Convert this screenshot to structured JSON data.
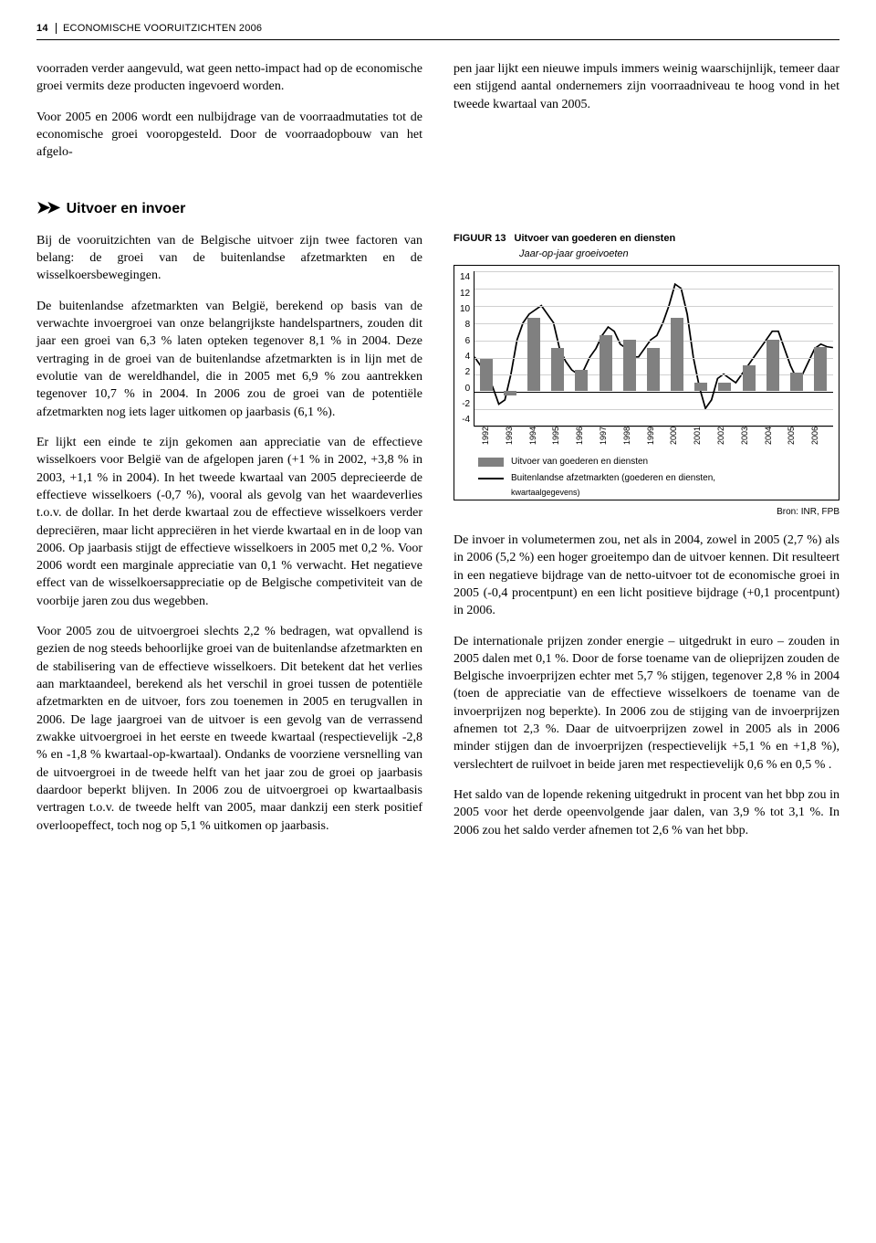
{
  "header": {
    "page_num": "14",
    "title": "ECONOMISCHE VOORUITZICHTEN 2006"
  },
  "intro": {
    "p1": "voorraden verder aangevuld, wat geen netto-impact had op de economische groei vermits deze producten ingevoerd worden.",
    "p2": "Voor 2005 en 2006 wordt een nulbĳdrage van de voorraadmutaties tot de economische groei vooropgesteld. Door de voorraadopbouw van het afgelopen jaar lĳkt een nieuwe impuls immers weinig waarschĳnlĳk, temeer daar een stĳgend aantal ondernemers zĳn voorraadniveau te hoog vond in het tweede kwartaal van 2005."
  },
  "section": {
    "title": "Uitvoer en invoer"
  },
  "left": {
    "p1": "Bĳ de vooruitzichten van de Belgische uitvoer zĳn twee factoren van belang: de groei van de buitenlandse afzetmarkten en de wisselkoersbewegingen.",
    "p2": "De buitenlandse afzetmarkten van België, berekend op basis van de verwachte invoergroei van onze belangrĳkste handelspartners, zouden dit jaar een groei van 6,3 % laten opteken tegenover 8,1 % in 2004. Deze vertraging in de groei van de buitenlandse afzetmarkten is in lĳn met de evolutie van de wereldhandel, die in 2005 met 6,9 % zou aantrekken tegenover 10,7 % in 2004. In 2006 zou de groei van de potentiële afzetmarkten nog iets lager uitkomen op jaarbasis (6,1 %).",
    "p3": "Er lĳkt een einde te zĳn gekomen aan appreciatie van de effectieve wisselkoers voor België van de afgelopen jaren (+1 % in 2002, +3,8 % in 2003, +1,1 % in 2004). In het tweede kwartaal van 2005 deprecieerde de effectieve wisselkoers (-0,7 %), vooral als gevolg van het waardeverlies t.o.v. de dollar. In het derde kwartaal zou de effectieve wisselkoers verder depreciëren, maar licht appreciëren in het vierde kwartaal en in de loop van 2006. Op jaarbasis stĳgt de effectieve wisselkoers in 2005 met 0,2 %. Voor 2006 wordt een marginale appreciatie van 0,1 % verwacht. Het negatieve effect van de wisselkoersappreciatie op de Belgische competiviteit van de voorbĳe jaren zou dus wegebben.",
    "p4": "Voor 2005 zou de uitvoergroei slechts 2,2 % bedragen, wat opvallend is gezien de nog steeds behoorlĳke groei van de buitenlandse afzetmarkten en de stabilisering van de effectieve wisselkoers. Dit betekent dat het verlies aan marktaandeel, berekend als het verschil in groei tussen de potentiële afzetmarkten en de uitvoer, fors zou toenemen in 2005 en terugvallen in 2006. De lage jaargroei van de uitvoer is een gevolg van de verrassend zwakke uitvoergroei in het eerste en tweede kwartaal (respectievelĳk -2,8 % en -1,8 % kwartaal-op-kwartaal). Ondanks de voorziene versnelling van de uitvoergroei in de tweede helft van het jaar zou de groei op jaarbasis daardoor beperkt blĳven. In 2006 zou de uitvoergroei op kwartaalbasis vertragen t.o.v. de tweede helft van 2005, maar dankzĳ een sterk positief overloopeffect, toch nog op 5,1 % uitkomen op jaarbasis."
  },
  "right": {
    "p1": "De invoer in volumetermen zou, net als in 2004, zowel in 2005 (2,7 %) als in 2006 (5,2 %) een hoger groeitempo dan de uitvoer kennen. Dit resulteert in een negatieve bĳdrage van de netto-uitvoer tot de economische groei in 2005 (-0,4 procentpunt) en een licht positieve bĳdrage (+0,1 procentpunt) in 2006.",
    "p2": "De internationale prĳzen zonder energie – uitgedrukt in euro – zouden in 2005 dalen met 0,1 %. Door de forse toename van de olieprĳzen zouden de Belgische invoerprĳzen echter met 5,7 % stĳgen, tegenover 2,8 % in 2004 (toen de appreciatie van de effectieve wisselkoers de toename van de invoerprĳzen nog beperkte). In 2006 zou de stĳging van de invoerprĳzen afnemen tot 2,3 %. Daar de uitvoerprĳzen zowel in 2005 als in 2006 minder stĳgen dan de invoerprĳzen (respectievelĳk +5,1 % en +1,8 %), verslechtert de ruilvoet in beide jaren met respectievelĳk 0,6 % en 0,5 % .",
    "p3": "Het saldo van de lopende rekening uitgedrukt in procent van het bbp zou in 2005 voor het derde opeenvolgende jaar dalen, van 3,9 % tot 3,1 %. In 2006 zou het saldo verder afnemen tot 2,6 % van het bbp."
  },
  "chart": {
    "fig_label": "FIGUUR 13",
    "title": "Uitvoer van goederen en diensten",
    "subtitle": "Jaar-op-jaar groeivoeten",
    "ymin": -4,
    "ymax": 14,
    "ystep": 2,
    "yticks": [
      "14",
      "12",
      "10",
      "8",
      "6",
      "4",
      "2",
      "0",
      "-2",
      "-4"
    ],
    "years": [
      "1992",
      "1993",
      "1994",
      "1995",
      "1996",
      "1997",
      "1998",
      "1999",
      "2000",
      "2001",
      "2002",
      "2003",
      "2004",
      "2005",
      "2006"
    ],
    "bars": [
      3.8,
      -0.5,
      8.5,
      5.0,
      2.5,
      6.5,
      6.0,
      5.0,
      8.5,
      1.0,
      1.0,
      3.0,
      6.0,
      2.2,
      5.1
    ],
    "line": [
      4,
      3,
      2,
      0.5,
      -1.5,
      -1,
      2,
      6,
      8,
      9,
      9.5,
      10,
      9,
      8,
      5,
      3.5,
      2.5,
      2,
      2.5,
      4,
      5,
      6.5,
      7.5,
      7,
      5.5,
      5,
      4,
      4,
      5,
      6,
      6.5,
      8,
      10,
      12.5,
      12,
      9,
      4,
      0.5,
      -2,
      -1,
      1.5,
      2,
      1.5,
      1,
      2,
      3,
      4,
      5,
      6,
      7,
      7,
      5,
      3,
      1.5,
      2,
      3.5,
      5,
      5.5,
      5.2,
      5.1
    ],
    "bar_color": "#808080",
    "grid_color": "#d0d0d0",
    "legend_bar": "Uitvoer van goederen en diensten",
    "legend_line": "Buitenlandse afzetmarkten (goederen en diensten,",
    "legend_line2": "kwartaalgegevens)",
    "source_prefix": "Bron: ",
    "source": "INR, FPB"
  }
}
